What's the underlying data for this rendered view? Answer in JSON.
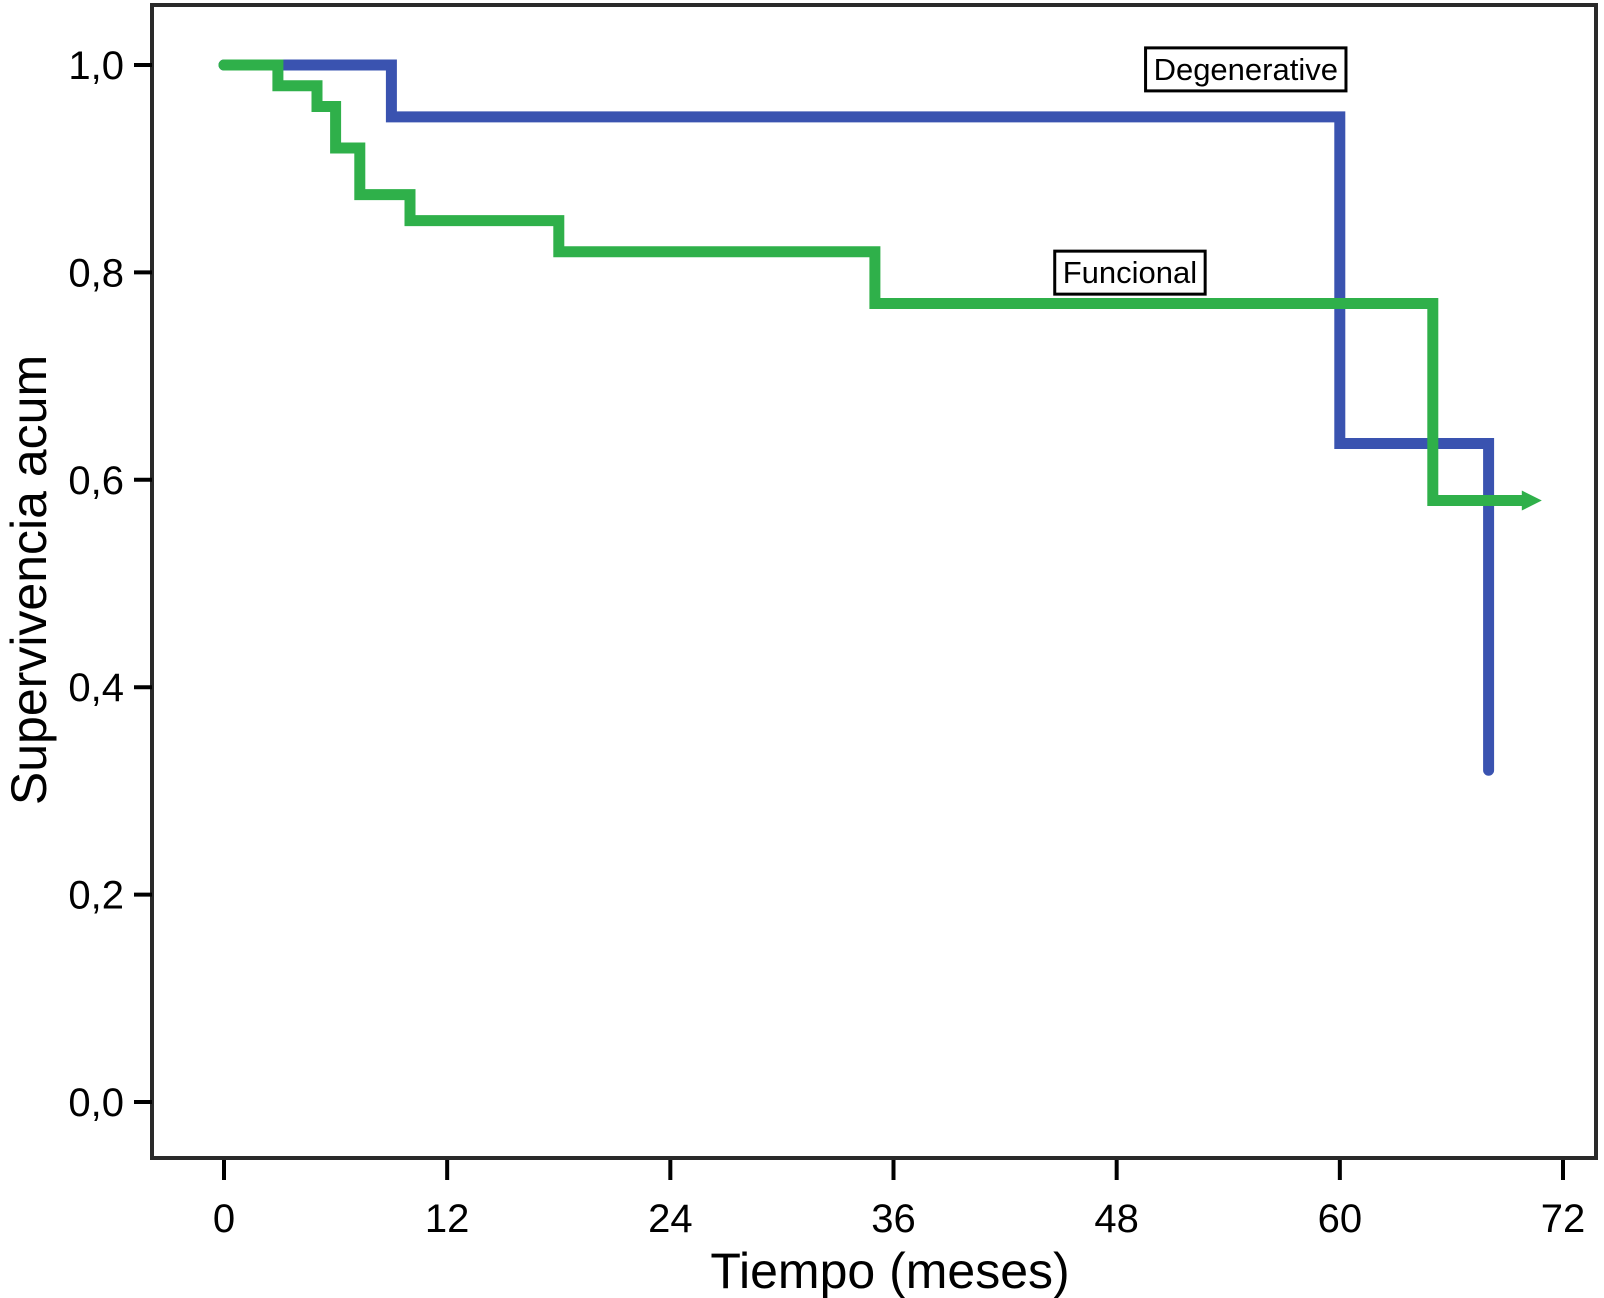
{
  "chart_data": {
    "type": "line",
    "subtype": "kaplan_meier_step",
    "title": "",
    "xlabel": "Tiempo (meses)",
    "ylabel": "Supervivencia acum",
    "xlim": [
      0,
      72
    ],
    "ylim": [
      0.0,
      1.0
    ],
    "grid": false,
    "decimal_separator": ",",
    "x_tick_values": [
      0,
      12,
      24,
      36,
      48,
      60,
      72
    ],
    "x_tick_labels": [
      "0",
      "12",
      "24",
      "36",
      "48",
      "60",
      "72"
    ],
    "y_tick_values": [
      0.0,
      0.2,
      0.4,
      0.6,
      0.8,
      1.0
    ],
    "y_tick_labels": [
      "0,0",
      "0,2",
      "0,4",
      "0,6",
      "0,8",
      "1,0"
    ],
    "legend_position": "inline-curve-labels",
    "series": [
      {
        "name": "Degenerative",
        "color": "#3a53b0",
        "points": [
          [
            0,
            1.0
          ],
          [
            9,
            1.0
          ],
          [
            9,
            0.95
          ],
          [
            60,
            0.95
          ],
          [
            60,
            0.635
          ],
          [
            68,
            0.635
          ],
          [
            68,
            0.32
          ]
        ],
        "end_marker": "none"
      },
      {
        "name": "Funcional",
        "color": "#2fb04a",
        "points": [
          [
            0,
            1.0
          ],
          [
            2.9,
            1.0
          ],
          [
            2.9,
            0.98
          ],
          [
            5,
            0.98
          ],
          [
            5,
            0.96
          ],
          [
            6,
            0.96
          ],
          [
            6,
            0.92
          ],
          [
            7.3,
            0.92
          ],
          [
            7.3,
            0.875
          ],
          [
            10,
            0.875
          ],
          [
            10,
            0.85
          ],
          [
            18,
            0.85
          ],
          [
            18,
            0.82
          ],
          [
            35,
            0.82
          ],
          [
            35,
            0.77
          ],
          [
            65,
            0.77
          ],
          [
            65,
            0.58
          ],
          [
            70,
            0.58
          ]
        ],
        "end_marker": "arrow"
      }
    ],
    "annotations": [
      {
        "text": "Degenerative",
        "x": 59.9,
        "y": 0.976,
        "align": "right"
      },
      {
        "text": "Funcional",
        "x": 45.1,
        "y": 0.78,
        "align": "left"
      }
    ],
    "frame_color": "#2a2a2a",
    "text_color": "#000000"
  }
}
